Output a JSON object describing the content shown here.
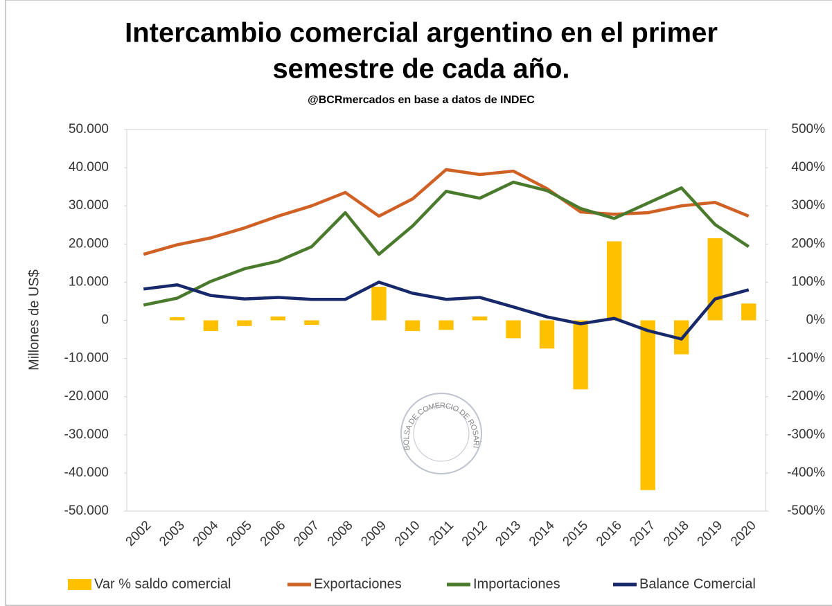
{
  "chart_data": {
    "type": "bar_line",
    "title": [
      "Intercambio comercial argentino en el primer",
      "semestre de cada año."
    ],
    "subtitle": "@BCRmercados en base a datos de INDEC",
    "y_label": "Millones de US$",
    "watermark": "BOLSA DE COMERCIO DE ROSARIO",
    "categories": [
      "2002",
      "2003",
      "2004",
      "2005",
      "2006",
      "2007",
      "2008",
      "2009",
      "2010",
      "2011",
      "2012",
      "2013",
      "2014",
      "2015",
      "2016",
      "2017",
      "2018",
      "2019",
      "2020"
    ],
    "series": [
      {
        "name": "Var % saldo comercial",
        "type": "bar",
        "axis": "y2",
        "color": "#ffc000",
        "values": [
          null,
          8,
          -28,
          -15,
          10,
          -12,
          null,
          88,
          -28,
          -25,
          10,
          -47,
          -74,
          -181,
          207,
          -445,
          -89,
          215,
          44
        ]
      },
      {
        "name": "Exportaciones",
        "type": "line",
        "color": "#d06125",
        "values": [
          17300,
          19800,
          21600,
          24200,
          27300,
          30000,
          33500,
          27300,
          31800,
          39500,
          38200,
          39100,
          34500,
          28400,
          27800,
          28200,
          30000,
          30900,
          27300
        ]
      },
      {
        "name": "Importaciones",
        "type": "line",
        "color": "#4a7a2c",
        "values": [
          4000,
          5800,
          10200,
          13500,
          15500,
          19300,
          28200,
          17300,
          24700,
          33800,
          32000,
          36200,
          34000,
          29300,
          26700,
          30700,
          34700,
          25100,
          19300
        ]
      },
      {
        "name": "Balance Comercial",
        "type": "line",
        "color": "#17296b",
        "values": [
          8200,
          9300,
          6500,
          5600,
          6000,
          5500,
          5500,
          10000,
          7100,
          5500,
          6000,
          3500,
          900,
          -900,
          500,
          -2700,
          -4900,
          5600,
          8000
        ]
      }
    ],
    "ylim": [
      -50000,
      50000
    ],
    "yticks": [
      {
        "value": -50000,
        "label": "-50.000"
      },
      {
        "value": -40000,
        "label": "-40.000"
      },
      {
        "value": -30000,
        "label": "-30.000"
      },
      {
        "value": -20000,
        "label": "-20.000"
      },
      {
        "value": -10000,
        "label": "-10.000"
      },
      0,
      {
        "value": 10000,
        "label": "10.000"
      },
      {
        "value": 20000,
        "label": "20.000"
      },
      {
        "value": 30000,
        "label": "30.000"
      },
      {
        "value": 40000,
        "label": "40.000"
      },
      {
        "value": 50000,
        "label": "50.000"
      }
    ],
    "y2lim": [
      -500,
      500
    ],
    "y2ticks": [
      {
        "value": -500,
        "label": "-500%"
      },
      {
        "value": -400,
        "label": "-400%"
      },
      {
        "value": -300,
        "label": "-300%"
      },
      {
        "value": -200,
        "label": "-200%"
      },
      {
        "value": -100,
        "label": "-100%"
      },
      {
        "value": 0,
        "label": "0%"
      },
      {
        "value": 100,
        "label": "100%"
      },
      {
        "value": 200,
        "label": "200%"
      },
      {
        "value": 300,
        "label": "300%"
      },
      {
        "value": 400,
        "label": "400%"
      },
      {
        "value": 500,
        "label": "500%"
      }
    ],
    "grid": false,
    "legend": "bottom"
  }
}
